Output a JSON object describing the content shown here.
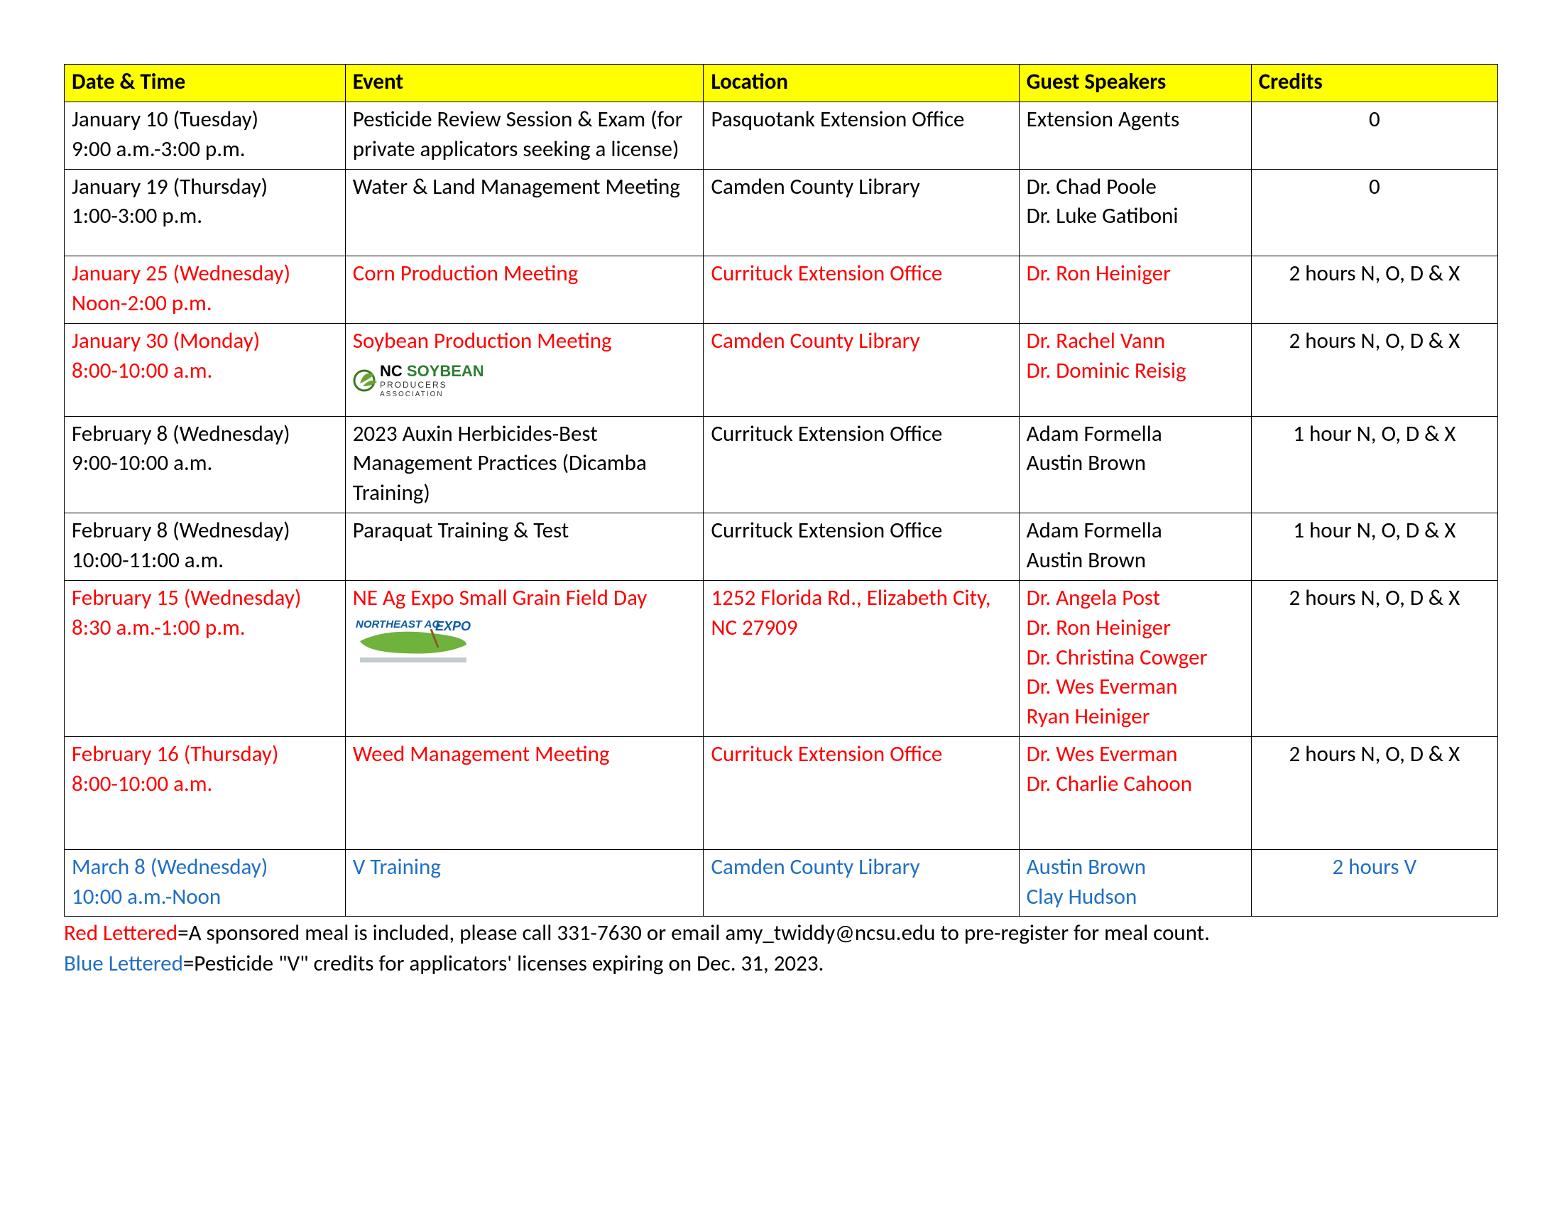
{
  "columns": [
    "Date & Time",
    "Event",
    "Location",
    "Guest Speakers",
    "Credits"
  ],
  "rows": [
    {
      "color": "black",
      "date": [
        "January 10 (Tuesday)",
        "9:00 a.m.-3:00 p.m."
      ],
      "event": [
        "Pesticide Review Session & Exam (for private applicators seeking a license)"
      ],
      "location": [
        "Pasquotank Extension Office"
      ],
      "speakers": [
        "Extension Agents"
      ],
      "credits": "0",
      "logo": null
    },
    {
      "color": "black",
      "date": [
        "January 19 (Thursday)",
        "1:00-3:00 p.m."
      ],
      "event": [
        "Water & Land Management Meeting"
      ],
      "location": [
        "Camden County Library"
      ],
      "speakers": [
        "Dr. Chad Poole",
        "Dr. Luke Gatiboni"
      ],
      "credits": "0",
      "logo": null,
      "pad_bottom": true
    },
    {
      "color": "red",
      "date": [
        "January 25 (Wednesday)",
        "Noon-2:00 p.m."
      ],
      "event": [
        "Corn Production Meeting"
      ],
      "location": [
        "Currituck Extension Office"
      ],
      "speakers": [
        "Dr. Ron Heiniger"
      ],
      "credits": "2 hours N, O, D & X",
      "logo": null
    },
    {
      "color": "red",
      "date": [
        "January 30 (Monday)",
        "8:00-10:00 a.m."
      ],
      "event": [
        "Soybean Production Meeting"
      ],
      "location": [
        "Camden County Library"
      ],
      "speakers": [
        "Dr. Rachel Vann",
        "Dr. Dominic Reisig"
      ],
      "credits": "2 hours N, O, D & X",
      "logo": "soybean"
    },
    {
      "color": "black",
      "date": [
        "February 8 (Wednesday)",
        "9:00-10:00 a.m."
      ],
      "event": [
        "2023 Auxin Herbicides-Best Management Practices (Dicamba Training)"
      ],
      "location": [
        "Currituck Extension Office"
      ],
      "speakers": [
        "Adam Formella",
        "Austin Brown"
      ],
      "credits": "1 hour N, O, D & X",
      "logo": null
    },
    {
      "color": "black",
      "date": [
        "February 8 (Wednesday)",
        "10:00-11:00 a.m."
      ],
      "event": [
        "Paraquat Training & Test"
      ],
      "location": [
        "Currituck Extension Office"
      ],
      "speakers": [
        "Adam Formella",
        "Austin Brown"
      ],
      "credits": "1 hour N, O, D & X",
      "logo": null
    },
    {
      "color": "red",
      "date": [
        "February 15 (Wednesday)",
        "8:30 a.m.-1:00 p.m."
      ],
      "event": [
        "NE Ag Expo Small Grain Field Day"
      ],
      "location": [
        "1252 Florida Rd., Elizabeth City, NC 27909"
      ],
      "speakers": [
        "Dr. Angela Post",
        "Dr. Ron Heiniger",
        "Dr. Christina Cowger",
        "Dr. Wes Everman",
        "Ryan Heiniger"
      ],
      "credits": "2 hours N, O, D & X",
      "logo": "agexpo"
    },
    {
      "color": "red",
      "date": [
        "February 16 (Thursday)",
        "8:00-10:00 a.m."
      ],
      "event": [
        "Weed Management Meeting"
      ],
      "location": [
        "Currituck Extension Office"
      ],
      "speakers": [
        "Dr. Wes Everman",
        "Dr. Charlie Cahoon"
      ],
      "credits": "2 hours N, O, D & X",
      "logo": null,
      "tall": true
    },
    {
      "color": "blue",
      "date": [
        "March 8 (Wednesday)",
        "10:00 a.m.-Noon"
      ],
      "event": [
        "V Training"
      ],
      "location": [
        "Camden County Library"
      ],
      "speakers": [
        "Austin Brown",
        "Clay Hudson"
      ],
      "credits": "2 hours V",
      "logo": null
    }
  ],
  "legend": {
    "red_label": "Red Lettered",
    "red_text": "=A sponsored meal is included, please call 331-7630 or email amy_twiddy@ncsu.edu to pre-register for meal count.",
    "blue_label": "Blue Lettered",
    "blue_text": "=Pesticide \"V\" credits for applicators' licenses expiring on Dec. 31, 2023."
  },
  "logos": {
    "soybean": {
      "line1_a": "NC ",
      "line1_b": "SOYBEAN",
      "line2": "PRODUCERS",
      "line3": "ASSOCIATION",
      "color_nc": "#000",
      "color_soy": "#2e7d32",
      "leaf_color": "#6aa42f",
      "ring_color": "#3a7a1f"
    },
    "agexpo": {
      "top": "NORTHEAST AG",
      "top2": "EXPO",
      "top_color": "#0a5aa6",
      "state_color": "#6fb23c",
      "sub_color": "#9aaab0"
    }
  }
}
